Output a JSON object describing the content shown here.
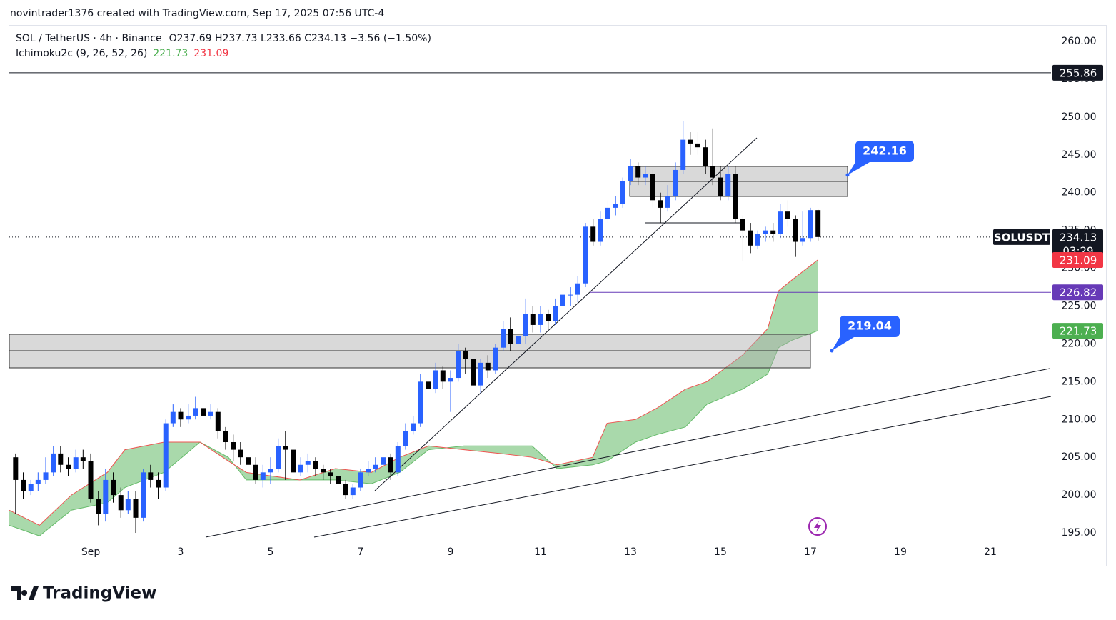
{
  "header": {
    "byline": "novintrader1376 created with TradingView.com, Sep 17, 2025 07:56 UTC-4",
    "brand": "TradingView"
  },
  "chart_data": {
    "type": "candlestick",
    "legend": {
      "symbol": "SOL / TetherUS · 4h · Binance",
      "ohlc": "O237.69  H237.73  L233.66  C234.13  −3.56 (−1.50%)",
      "indicator": "Ichimoku2c (9, 26, 52, 26)"
    },
    "up_color": "#2962ff",
    "down_color": "#000000",
    "xlim": [
      -0.81,
      22.35
    ],
    "xticks": [
      {
        "value": 1,
        "label": "Sep"
      },
      3,
      5,
      7,
      9,
      11,
      13,
      15,
      17,
      19,
      21
    ],
    "ylim": [
      193.68,
      262.08
    ],
    "yticks": [
      {
        "value": 195,
        "label": "195.00"
      },
      {
        "value": 200,
        "label": "200.00"
      },
      {
        "value": 205,
        "label": "205.00"
      },
      {
        "value": 210,
        "label": "210.00"
      },
      {
        "value": 215,
        "label": "215.00"
      },
      {
        "value": 220,
        "label": "220.00"
      },
      {
        "value": 225,
        "label": "225.00"
      },
      {
        "value": 230,
        "label": "230.00"
      },
      {
        "value": 235,
        "label": "235.00"
      },
      {
        "value": 240,
        "label": "240.00"
      },
      {
        "value": 245,
        "label": "245.00"
      },
      {
        "value": 250,
        "label": "250.00"
      },
      {
        "value": 255,
        "label": "255.00"
      },
      {
        "value": 260,
        "label": "260.00"
      }
    ],
    "grid": false,
    "x": [
      -0.67,
      -0.5,
      -0.33,
      -0.17,
      0,
      0.17,
      0.33,
      0.5,
      0.67,
      0.83,
      1,
      1.17,
      1.33,
      1.5,
      1.67,
      1.83,
      2,
      2.17,
      2.33,
      2.5,
      2.67,
      2.83,
      3,
      3.17,
      3.33,
      3.5,
      3.67,
      3.83,
      4,
      4.17,
      4.33,
      4.5,
      4.67,
      4.83,
      5,
      5.17,
      5.33,
      5.5,
      5.67,
      5.83,
      6,
      6.17,
      6.33,
      6.5,
      6.67,
      6.83,
      7,
      7.17,
      7.33,
      7.5,
      7.67,
      7.83,
      8,
      8.17,
      8.33,
      8.5,
      8.67,
      8.83,
      9,
      9.17,
      9.33,
      9.5,
      9.67,
      9.83,
      10,
      10.17,
      10.33,
      10.5,
      10.67,
      10.83,
      11,
      11.17,
      11.33,
      11.5,
      11.67,
      11.83,
      12,
      12.17,
      12.33,
      12.5,
      12.67,
      12.83,
      13,
      13.17,
      13.33,
      13.5,
      13.67,
      13.83,
      14,
      14.17,
      14.33,
      14.5,
      14.67,
      14.83,
      15,
      15.17,
      15.33,
      15.5,
      15.67,
      15.83,
      16,
      16.17,
      16.33,
      16.5,
      16.67,
      16.83,
      17,
      17.17
    ],
    "candles": [
      [
        205,
        205.5,
        197.5,
        202
      ],
      [
        202,
        203,
        199.5,
        200.5
      ],
      [
        200.5,
        202,
        200,
        201.5
      ],
      [
        201.5,
        203,
        200.5,
        202
      ],
      [
        202,
        205,
        201.5,
        203
      ],
      [
        203,
        206.5,
        202.5,
        205.5
      ],
      [
        205.5,
        206.5,
        203,
        204
      ],
      [
        204,
        205,
        202.5,
        203.5
      ],
      [
        203.5,
        206,
        203,
        205
      ],
      [
        205,
        206,
        203.5,
        204.5
      ],
      [
        204.5,
        205.5,
        199,
        199.5
      ],
      [
        199.5,
        200.5,
        196,
        197.5
      ],
      [
        197.5,
        203.5,
        196.5,
        202
      ],
      [
        202,
        203,
        199,
        200
      ],
      [
        200,
        201,
        197,
        198
      ],
      [
        198,
        200.5,
        197.5,
        199.5
      ],
      [
        199.5,
        200.5,
        195,
        197
      ],
      [
        197,
        203.5,
        196.5,
        203
      ],
      [
        203,
        204,
        201,
        202
      ],
      [
        202,
        203,
        199.5,
        201
      ],
      [
        201,
        210,
        200.5,
        209.5
      ],
      [
        209.5,
        212,
        209,
        211
      ],
      [
        211,
        211.5,
        209,
        210
      ],
      [
        210,
        212,
        209.5,
        210.5
      ],
      [
        210.5,
        213,
        210,
        211.5
      ],
      [
        211.5,
        212.5,
        209.5,
        210.5
      ],
      [
        210.5,
        212,
        210,
        211
      ],
      [
        211,
        211.5,
        207.5,
        208.5
      ],
      [
        208.5,
        209,
        206,
        207
      ],
      [
        207,
        208,
        204.5,
        206
      ],
      [
        206,
        207,
        204,
        205
      ],
      [
        205,
        206.5,
        203,
        204
      ],
      [
        204,
        205,
        201.5,
        202
      ],
      [
        202,
        204,
        201,
        203
      ],
      [
        203,
        205,
        201.5,
        203.5
      ],
      [
        203.5,
        207.5,
        203,
        206.5
      ],
      [
        206.5,
        208.5,
        202,
        206
      ],
      [
        206,
        207,
        202,
        203
      ],
      [
        203,
        205,
        202.5,
        204
      ],
      [
        204,
        205.5,
        203,
        204.5
      ],
      [
        204.5,
        205,
        202.5,
        203.5
      ],
      [
        203.5,
        204,
        202,
        203
      ],
      [
        203,
        203.5,
        201.5,
        202.5
      ],
      [
        202.5,
        203,
        200.5,
        201.5
      ],
      [
        201.5,
        202,
        199.5,
        200
      ],
      [
        200,
        201.5,
        199.5,
        201
      ],
      [
        201,
        203.5,
        200.5,
        203
      ],
      [
        203,
        204.5,
        202.5,
        203.5
      ],
      [
        203.5,
        205,
        203,
        204
      ],
      [
        204,
        206,
        203,
        205
      ],
      [
        205,
        205.5,
        202,
        203
      ],
      [
        203,
        207,
        202.5,
        206.5
      ],
      [
        206.5,
        209.5,
        206,
        208.5
      ],
      [
        208.5,
        210.5,
        208,
        209.5
      ],
      [
        209.5,
        216,
        209,
        215
      ],
      [
        215,
        216.5,
        213,
        214
      ],
      [
        214,
        217.5,
        213.5,
        216.5
      ],
      [
        216.5,
        217,
        214,
        215
      ],
      [
        215,
        216.5,
        211,
        215.5
      ],
      [
        215.5,
        220,
        215,
        219
      ],
      [
        219,
        219.5,
        216,
        218
      ],
      [
        218,
        218.5,
        212,
        214.5
      ],
      [
        214.5,
        218,
        213.5,
        217.5
      ],
      [
        217.5,
        218.5,
        215.5,
        216.5
      ],
      [
        216.5,
        220,
        216,
        219.5
      ],
      [
        219.5,
        223,
        219,
        222
      ],
      [
        222,
        223.5,
        219,
        220
      ],
      [
        220,
        224,
        219.5,
        221
      ],
      [
        221,
        226,
        220,
        224
      ],
      [
        224,
        225,
        221.5,
        222.5
      ],
      [
        222.5,
        225,
        221.5,
        224
      ],
      [
        224,
        224.5,
        222,
        223
      ],
      [
        223,
        226,
        222.5,
        225
      ],
      [
        225,
        228,
        224.5,
        226.5
      ],
      [
        226.5,
        227.5,
        225,
        226.5
      ],
      [
        226.5,
        229,
        225.5,
        228
      ],
      [
        228,
        236,
        227.5,
        235.5
      ],
      [
        235.5,
        236.5,
        233,
        233.5
      ],
      [
        233.5,
        237.5,
        233,
        236.5
      ],
      [
        236.5,
        239,
        236,
        238
      ],
      [
        238,
        239.5,
        237,
        238.5
      ],
      [
        238.5,
        242,
        238,
        241.5
      ],
      [
        241.5,
        244.5,
        241,
        243.5
      ],
      [
        243.5,
        244,
        241,
        242
      ],
      [
        242,
        243.5,
        241,
        242.5
      ],
      [
        242.5,
        243,
        238,
        239
      ],
      [
        239,
        240,
        236,
        238
      ],
      [
        238,
        241,
        237.5,
        239.5
      ],
      [
        239.5,
        244,
        239,
        243
      ],
      [
        243,
        249.5,
        242.5,
        247
      ],
      [
        247,
        248,
        245,
        246.5
      ],
      [
        246.5,
        248,
        245,
        246
      ],
      [
        246,
        247,
        242.5,
        243.5
      ],
      [
        243.5,
        248.5,
        241,
        242
      ],
      [
        242,
        243.5,
        239,
        239.5
      ],
      [
        239.5,
        243.5,
        239,
        242.5
      ],
      [
        242.5,
        243.5,
        236,
        236.5
      ],
      [
        236.5,
        237,
        231,
        235
      ],
      [
        235,
        236,
        232,
        233
      ],
      [
        233,
        235,
        232.5,
        234.5
      ],
      [
        234.5,
        235.5,
        233.5,
        235
      ],
      [
        235,
        236,
        233.5,
        234.5
      ],
      [
        234.5,
        238.5,
        234,
        237.5
      ],
      [
        237.5,
        239,
        235.5,
        236.5
      ],
      [
        236.5,
        237,
        231.5,
        233.5
      ],
      [
        233.5,
        237.5,
        233,
        234
      ],
      [
        234,
        238,
        233.5,
        237.69
      ],
      [
        237.69,
        237.73,
        233.66,
        234.13
      ]
    ],
    "cloud": {
      "x": [
        -0.81,
        -0.14,
        0.57,
        1.37,
        1.76,
        2.63,
        3.43,
        4.06,
        4.46,
        5.65,
        6.44,
        7.24,
        7.87,
        8.51,
        9.3,
        10.1,
        10.81,
        11.37,
        12.16,
        12.48,
        13.11,
        13.59,
        14.22,
        14.7,
        15.49,
        16.05,
        16.29,
        16.6,
        17.16
      ],
      "span_a": [
        196,
        194.6,
        198,
        199,
        201,
        203,
        207,
        205,
        202,
        202,
        202,
        201.5,
        203,
        206,
        206.5,
        206.5,
        206.5,
        203.5,
        204,
        204.5,
        207,
        208,
        209,
        212,
        214,
        216,
        219.5,
        220.5,
        221.73
      ],
      "span_b": [
        198,
        196,
        200,
        203,
        206,
        207,
        207,
        204.5,
        203,
        202,
        203.5,
        203,
        205,
        206.5,
        206,
        205.5,
        205,
        204,
        205,
        209.5,
        210,
        211.5,
        214,
        215,
        218.5,
        222,
        227,
        228.5,
        231.09
      ],
      "a_color": "#66bb6a",
      "b_color": "#ef5350",
      "fill": "rgba(76,175,80,0.48)"
    },
    "levels": [
      {
        "value": 255.86,
        "color": "#131722",
        "line": "solid"
      },
      {
        "value": 234.13,
        "color": "#131722",
        "line": "dotted"
      },
      {
        "value": 231.09,
        "color": "#f23645",
        "line": "none"
      },
      {
        "value": 226.82,
        "color": "#673ab7",
        "line": "ray"
      },
      {
        "value": 221.73,
        "color": "#4caf50",
        "line": "none"
      }
    ],
    "symbol_tag": "SOLUSDT",
    "countdown": "03:29",
    "callouts": [
      {
        "value": 242.16
      },
      {
        "value": 219.04
      }
    ]
  }
}
